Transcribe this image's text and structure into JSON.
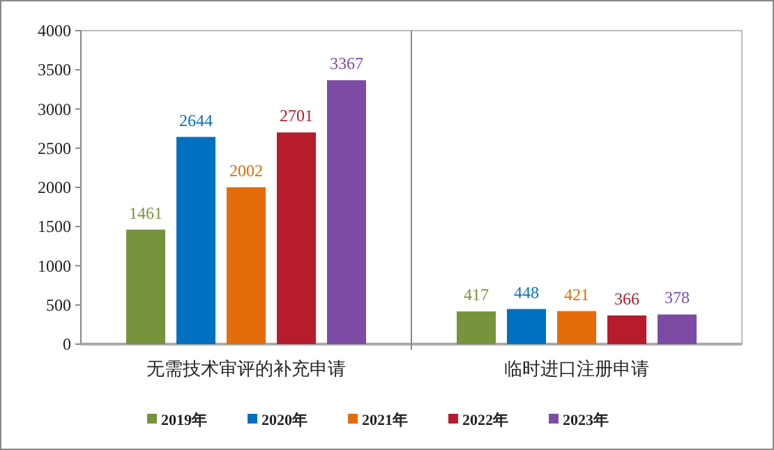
{
  "chart_data": {
    "type": "bar",
    "categories": [
      "无需技术审评的补充申请",
      "临时进口注册申请"
    ],
    "series": [
      {
        "name": "2019年",
        "color": "#77933c",
        "values": [
          1461,
          417
        ]
      },
      {
        "name": "2020年",
        "color": "#0070c0",
        "values": [
          2644,
          448
        ]
      },
      {
        "name": "2021年",
        "color": "#e46c0a",
        "values": [
          2002,
          421
        ]
      },
      {
        "name": "2022年",
        "color": "#b71c2c",
        "values": [
          2701,
          366
        ]
      },
      {
        "name": "2023年",
        "color": "#7e4ba4",
        "values": [
          3367,
          378
        ]
      }
    ],
    "ylim": [
      0,
      4000
    ],
    "yticks": [
      0,
      500,
      1000,
      1500,
      2000,
      2500,
      3000,
      3500,
      4000
    ],
    "data_labels": true,
    "legend": "bottom",
    "grid": false
  }
}
